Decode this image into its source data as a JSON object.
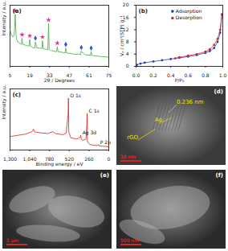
{
  "chart_data": [
    {
      "type": "line",
      "panel": "(a)",
      "x_label": "2θ / Degrees",
      "y_label": "Intensity / a.u.",
      "xlim": [
        5,
        75
      ],
      "xticks": [
        5,
        19,
        33,
        47,
        61,
        75
      ],
      "ylim": [
        0,
        100
      ],
      "tick_labels": "x",
      "series": [
        {
          "type": "line",
          "color": "#3cae3c",
          "x": [
            5,
            6,
            7,
            7.8,
            8.3,
            8.7,
            9.1,
            9.5,
            10.5,
            12,
            13,
            13.5,
            14,
            15.5,
            17,
            18.5,
            19,
            19.5,
            21,
            22.5,
            23,
            24,
            26,
            27.5,
            28,
            28.5,
            30,
            31.8,
            32.3,
            32.8,
            34,
            36,
            38,
            38.5,
            39,
            42,
            44,
            44.5,
            45,
            48,
            50,
            54,
            55,
            55.5,
            58,
            62,
            62.5,
            63,
            66,
            70,
            75
          ],
          "values": [
            60,
            52,
            48,
            50,
            62,
            85,
            60,
            45,
            40,
            38,
            36,
            46,
            36,
            35,
            34,
            33,
            44,
            33,
            31,
            30,
            40,
            30,
            30,
            29,
            42,
            29,
            28,
            27,
            70,
            28,
            26,
            25,
            24,
            32,
            24,
            23,
            22,
            30,
            22,
            21,
            20,
            20,
            19,
            25,
            19,
            18,
            24,
            18,
            17,
            16,
            15
          ]
        },
        {
          "type": "scatter",
          "color": "#e0339a",
          "marker": "star",
          "x": [
            8.7,
            13.5,
            19,
            28,
            32.3,
            38.5
          ],
          "values": [
            91,
            52,
            50,
            48,
            76,
            38
          ]
        },
        {
          "type": "scatter",
          "color": "#2a55d0",
          "marker": "diamond",
          "x": [
            23,
            44.5,
            55.5,
            62.5
          ],
          "values": [
            46,
            36,
            31,
            30
          ]
        }
      ]
    },
    {
      "type": "line",
      "panel": "(b)",
      "x_label": "P/P₀",
      "y_label": "Vₐ / cm³(STP) g⁻¹",
      "xlim": [
        0,
        1
      ],
      "xticks": [
        0,
        0.2,
        0.4,
        0.6,
        0.8,
        1
      ],
      "ylim": [
        0,
        20
      ],
      "yticks": [
        0,
        4,
        8,
        12,
        16,
        20
      ],
      "legend": "top-left",
      "series": [
        {
          "name": "Adsorption",
          "color": "#2040c0",
          "marker": "circle",
          "x": [
            0.01,
            0.05,
            0.1,
            0.2,
            0.3,
            0.4,
            0.5,
            0.6,
            0.7,
            0.8,
            0.85,
            0.9,
            0.94,
            0.97,
            0.99
          ],
          "values": [
            0.5,
            0.9,
            1.2,
            1.6,
            2.0,
            2.4,
            2.8,
            3.2,
            3.7,
            4.4,
            5.0,
            6.0,
            8,
            11,
            17
          ]
        },
        {
          "name": "Desorption",
          "color": "#d42a2a",
          "marker": "circle",
          "x": [
            0.99,
            0.97,
            0.94,
            0.9,
            0.85,
            0.8,
            0.7,
            0.6,
            0.5,
            0.45
          ],
          "values": [
            17,
            12,
            9,
            7,
            5.6,
            4.8,
            4.0,
            3.5,
            3.0,
            2.6
          ]
        }
      ]
    },
    {
      "type": "line",
      "panel": "(c)",
      "x_label": "Binding energy / eV",
      "y_label": "Intensity / a.u.",
      "xlim": [
        1300,
        0
      ],
      "xticks": [
        1300,
        1040,
        780,
        520,
        260,
        0
      ],
      "ylim": [
        0,
        100
      ],
      "tick_labels": "x",
      "series": [
        {
          "type": "line",
          "color": "#d42020",
          "x": [
            1300,
            1200,
            1100,
            1010,
            990,
            980,
            900,
            800,
            740,
            700,
            600,
            560,
            535,
            531,
            527,
            500,
            420,
            400,
            372,
            368,
            364,
            340,
            300,
            289,
            285,
            281,
            250,
            200,
            150,
            134,
            130,
            80,
            30,
            0
          ],
          "values": [
            22,
            24,
            26,
            30,
            34,
            30,
            28,
            27,
            30,
            27,
            25,
            28,
            60,
            85,
            30,
            20,
            18,
            19,
            22,
            24,
            18,
            16,
            18,
            40,
            60,
            14,
            9,
            8,
            7,
            9,
            7,
            6,
            6,
            5
          ]
        }
      ],
      "annotations": [
        {
          "text": "O 1s",
          "x": 531,
          "y": 85
        },
        {
          "text": "C 1s",
          "x": 285,
          "y": 60
        },
        {
          "text": "Ag 3d",
          "x": 368,
          "y": 24
        },
        {
          "text": "P 2p",
          "x": 134,
          "y": 9
        }
      ]
    }
  ],
  "images": [
    {
      "kind": "TEM",
      "panel": "(d)",
      "annotations": [
        "0.236 nm",
        "Ag",
        "rGO"
      ],
      "scale_bar": "10 nm"
    },
    {
      "kind": "SEM",
      "panel": "(e)",
      "scale_bar": "1 μm"
    },
    {
      "kind": "SEM",
      "panel": "(f)",
      "scale_bar": "500 nm"
    }
  ]
}
